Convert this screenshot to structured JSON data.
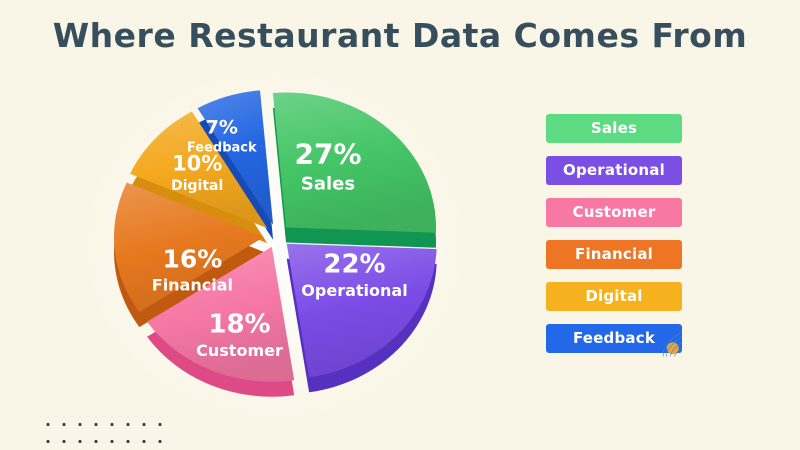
{
  "title": "Where Restaurant Data Comes From",
  "colors": {
    "background": "#FAF6E7",
    "title_text": "#374E5C",
    "slice_label_text": "#FFFFFF",
    "dots": "#3E3E3E",
    "wave_lines": "#4186B4",
    "corner_circle": "#EFA338"
  },
  "chart_data": {
    "type": "pie",
    "title": "Where Restaurant Data Comes From",
    "unit": "%",
    "style": "3d-exploded",
    "start_angle_deg": -5,
    "direction": "clockwise",
    "segments": [
      {
        "label": "Sales",
        "value": 27,
        "display": "27%",
        "color": "#44C566",
        "color_dark": "#119552"
      },
      {
        "label": "Operational",
        "value": 22,
        "display": "22%",
        "color": "#7B4BE6",
        "color_dark": "#5630BE"
      },
      {
        "label": "Customer",
        "value": 18,
        "display": "18%",
        "color": "#F678A5",
        "color_dark": "#DE4A86"
      },
      {
        "label": "Financial",
        "value": 16,
        "display": "16%",
        "color": "#E7791F",
        "color_dark": "#BF5A10"
      },
      {
        "label": "Digital",
        "value": 10,
        "display": "10%",
        "color": "#F4A81E",
        "color_dark": "#D78D0E"
      },
      {
        "label": "Feedback",
        "value": 7,
        "display": "7%",
        "color": "#2466E2",
        "color_dark": "#174BB4"
      }
    ],
    "legend_position": "right",
    "legend": [
      {
        "label": "Sales",
        "color": "#5CDB82"
      },
      {
        "label": "Operational",
        "color": "#7C4FE4"
      },
      {
        "label": "Customer",
        "color": "#F878A4"
      },
      {
        "label": "Financial",
        "color": "#ED7524"
      },
      {
        "label": "Digital",
        "color": "#F6B11E"
      },
      {
        "label": "Feedback",
        "color": "#2268E8"
      }
    ]
  }
}
